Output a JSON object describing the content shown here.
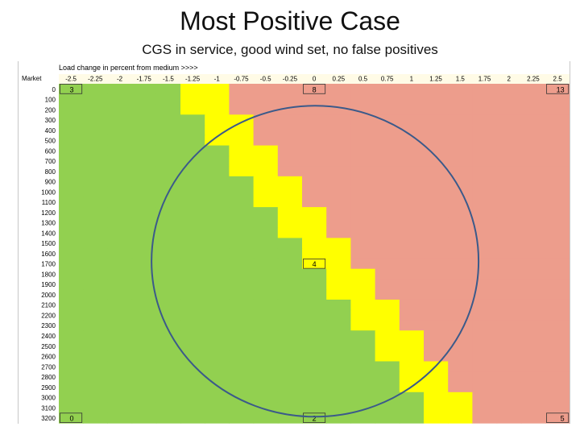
{
  "slide": {
    "title": "Most Positive Case",
    "subtitle": "CGS in service, good wind set, no false positives"
  },
  "chart_data": {
    "type": "heatmap",
    "axis_caption": "Load change in percent from medium >>>>",
    "row_header": "Market",
    "x": [
      "-2.5",
      "-2.25",
      "-2",
      "-1.75",
      "-1.5",
      "-1.25",
      "-1",
      "-0.75",
      "-0.5",
      "-0.25",
      "0",
      "0.25",
      "0.5",
      "0.75",
      "1",
      "1.25",
      "1.5",
      "1.75",
      "2",
      "2.25",
      "2.5"
    ],
    "y": [
      "0",
      "100",
      "200",
      "300",
      "400",
      "500",
      "600",
      "700",
      "800",
      "900",
      "1000",
      "1100",
      "1200",
      "1300",
      "1400",
      "1500",
      "1600",
      "1700",
      "1800",
      "1900",
      "2000",
      "2100",
      "2200",
      "2300",
      "2400",
      "2500",
      "2600",
      "2700",
      "2800",
      "2900",
      "3000",
      "3100",
      "3200"
    ],
    "colors": {
      "green": "#92d050",
      "yellow": "#ffff00",
      "red": "#ed9d8c"
    },
    "boundaries": {
      "yellow_start_col": [
        5,
        5,
        5,
        6,
        6,
        6,
        7,
        7,
        7,
        8,
        8,
        8,
        9,
        9,
        9,
        10,
        10,
        10,
        11,
        11,
        11,
        12,
        12,
        12,
        13,
        13,
        13,
        14,
        14,
        14,
        15,
        15,
        15
      ],
      "red_start_col": [
        7,
        7,
        7,
        8,
        8,
        8,
        9,
        9,
        9,
        10,
        10,
        10,
        11,
        11,
        11,
        12,
        12,
        12,
        13,
        13,
        13,
        14,
        14,
        14,
        15,
        15,
        15,
        16,
        16,
        16,
        17,
        17,
        17
      ]
    },
    "labeled_cells": [
      {
        "text": "3",
        "row": "0",
        "col": "-2.5"
      },
      {
        "text": "8",
        "row": "0",
        "col": "0"
      },
      {
        "text": "13",
        "row": "0",
        "col": "2.5"
      },
      {
        "text": "4",
        "row": "1700",
        "col": "0"
      },
      {
        "text": "0",
        "row": "3200",
        "col": "-2.5"
      },
      {
        "text": "2",
        "row": "3200",
        "col": "0"
      },
      {
        "text": "5",
        "row": "3200",
        "col": "2.5"
      }
    ],
    "annotation": {
      "shape": "circle",
      "center": {
        "row": "1700",
        "col": "0"
      },
      "color": "#3b5a8a"
    },
    "grid": false,
    "legend": "none"
  }
}
